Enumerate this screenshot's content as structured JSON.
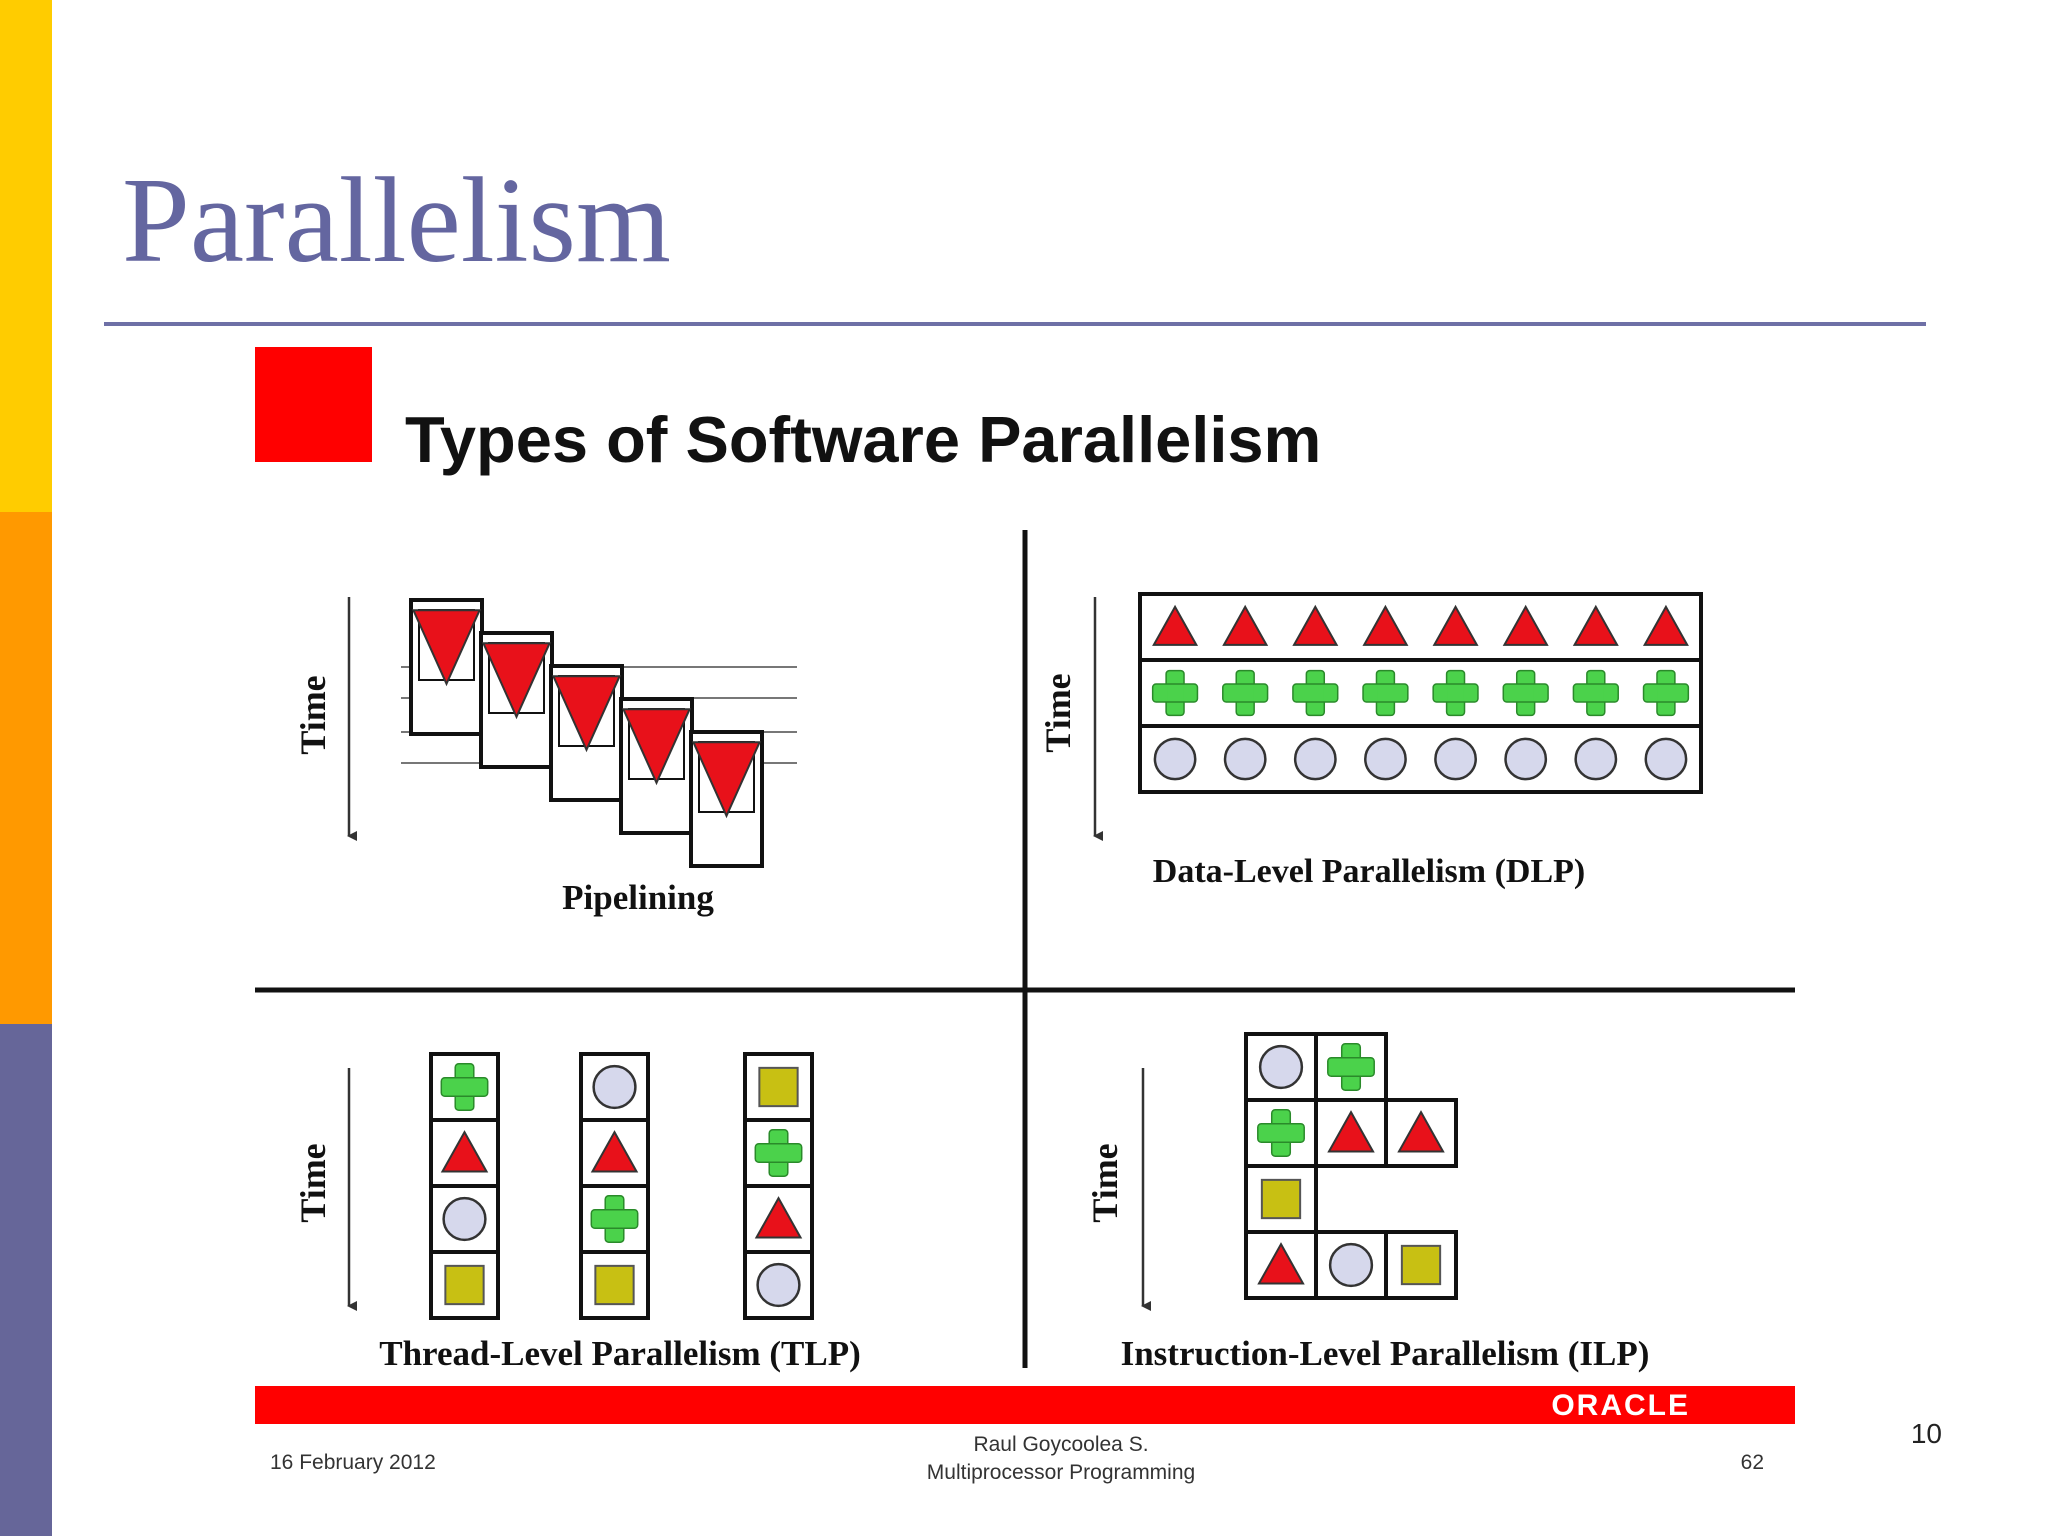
{
  "slide": {
    "title": "Parallelism",
    "page_number": "10",
    "sidebar_colors": [
      "#ffcc00",
      "#ff9900",
      "#666699"
    ]
  },
  "figure": {
    "heading": "Types of Software Parallelism",
    "time_label": "Time",
    "panels": {
      "pipelining": {
        "caption": "Pipelining"
      },
      "dlp": {
        "caption": "Data-Level Parallelism (DLP)",
        "columns": 8,
        "rows": [
          "triangle",
          "cross",
          "circle"
        ]
      },
      "tlp": {
        "caption": "Thread-Level Parallelism (TLP)",
        "threads": [
          [
            "cross",
            "triangle",
            "circle",
            "square"
          ],
          [
            "circle",
            "triangle",
            "cross",
            "square"
          ],
          [
            "square",
            "cross",
            "triangle",
            "circle"
          ]
        ]
      },
      "ilp": {
        "caption": "Instruction-Level Parallelism (ILP)",
        "rows": [
          [
            "circle",
            "cross"
          ],
          [
            "cross",
            "triangle",
            "triangle"
          ],
          [
            "square"
          ],
          [
            "triangle",
            "circle",
            "square"
          ]
        ]
      }
    },
    "brand": "ORACLE",
    "footer": {
      "date": "16 February 2012",
      "author": "Raul Goycoolea S.",
      "course": "Multiprocessor Programming",
      "page": "62"
    },
    "colors": {
      "triangle": "#e8111a",
      "cross": "#4bd24b",
      "circle": "#d6d8ec",
      "square": "#c8c013",
      "accent": "#ff0000"
    }
  }
}
